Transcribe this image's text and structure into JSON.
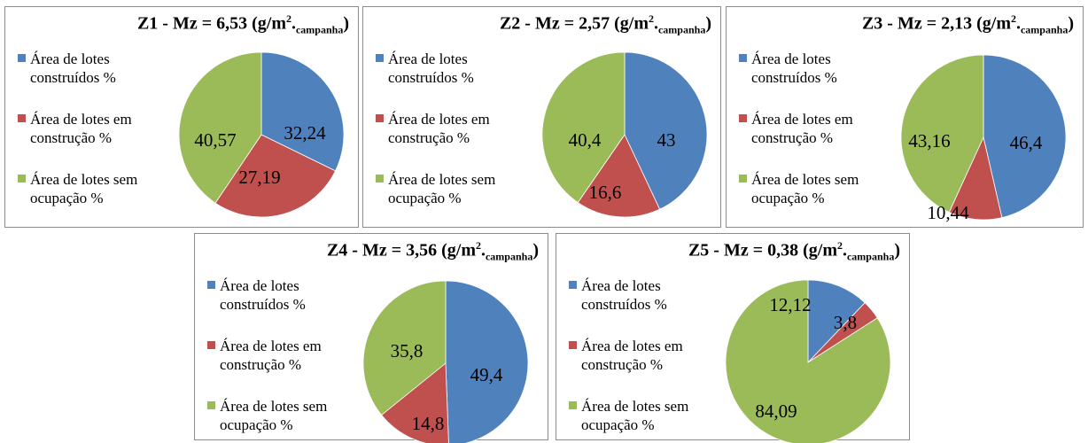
{
  "legend_labels": [
    "Área de lotes construídos %",
    "Área de lotes em construção %",
    "Área de lotes sem ocupação %"
  ],
  "colors": [
    "#4f81bd",
    "#c0504d",
    "#9bbb59"
  ],
  "chart_data": [
    {
      "type": "pie",
      "title_main": "Z1 - Mz = 6,53 (g/m",
      "title_sup": "2",
      "title_mid": ".",
      "title_sub": "campanha",
      "title_end": ")",
      "categories": [
        "Área de lotes construídos %",
        "Área de lotes em construção %",
        "Área de lotes sem ocupação %"
      ],
      "values": [
        32.24,
        27.19,
        40.57
      ],
      "value_labels": [
        "32,24",
        "27,19",
        "40,57"
      ]
    },
    {
      "type": "pie",
      "title_main": "Z2 - Mz = 2,57 (g/m",
      "title_sup": "2",
      "title_mid": ".",
      "title_sub": "campanha",
      "title_end": ")",
      "categories": [
        "Área de lotes construídos %",
        "Área de lotes em construção %",
        "Área de lotes sem ocupação %"
      ],
      "values": [
        43,
        16.6,
        40.4
      ],
      "value_labels": [
        "43",
        "16,6",
        "40,4"
      ]
    },
    {
      "type": "pie",
      "title_main": "Z3 - Mz = 2,13 (g/m",
      "title_sup": "2",
      "title_mid": ".",
      "title_sub": "campanha",
      "title_end": ")",
      "categories": [
        "Área de lotes construídos %",
        "Área de lotes em construção %",
        "Área de lotes sem ocupação %"
      ],
      "values": [
        46.4,
        10.44,
        43.16
      ],
      "value_labels": [
        "46,4",
        "10,44",
        "43,16"
      ]
    },
    {
      "type": "pie",
      "title_main": "Z4 - Mz = 3,56 (g/m",
      "title_sup": "2",
      "title_mid": ".",
      "title_sub": "campanha",
      "title_end": ")",
      "categories": [
        "Área de lotes construídos %",
        "Área de lotes em construção %",
        "Área de lotes sem ocupação %"
      ],
      "values": [
        49.4,
        14.8,
        35.8
      ],
      "value_labels": [
        "49,4",
        "14,8",
        "35,8"
      ]
    },
    {
      "type": "pie",
      "title_main": "Z5 - Mz = 0,38 (g/m",
      "title_sup": "2",
      "title_mid": ".",
      "title_sub": "campanha",
      "title_end": ")",
      "categories": [
        "Área de lotes construídos %",
        "Área de lotes em construção %",
        "Área de lotes sem ocupação %"
      ],
      "values": [
        12.12,
        3.8,
        84.09
      ],
      "value_labels": [
        "12,12",
        "3,8",
        "84,09"
      ]
    }
  ]
}
